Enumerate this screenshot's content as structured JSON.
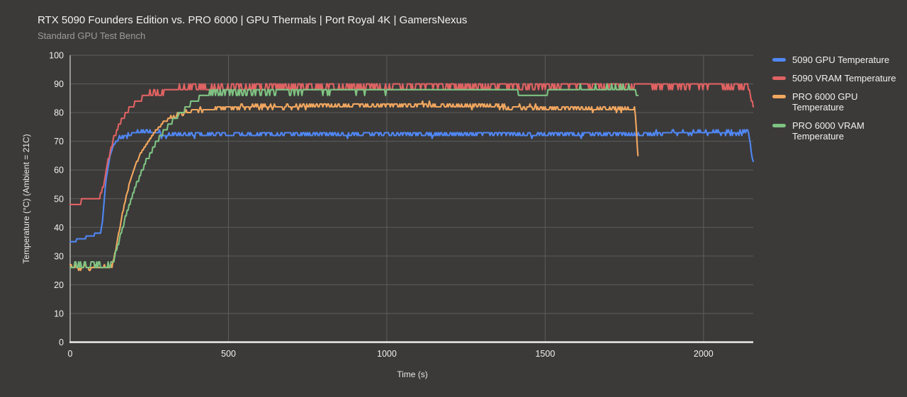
{
  "chart_data": {
    "type": "line",
    "title": "RTX 5090 Founders Edition vs. PRO 6000 | GPU Thermals | Port Royal 4K | GamersNexus",
    "subtitle": "Standard GPU Test Bench",
    "xlabel": "Time (s)",
    "ylabel": "Temperature (°C) (Ambient = 21C)",
    "xlim": [
      0,
      2157
    ],
    "ylim": [
      0,
      100
    ],
    "xticks": [
      0,
      500,
      1000,
      1500,
      2000
    ],
    "yticks": [
      0,
      10,
      20,
      30,
      40,
      50,
      60,
      70,
      80,
      90,
      100
    ],
    "grid": true,
    "legend_position": "right",
    "colors": {
      "background": "#3b3a39",
      "gridline": "#5d5d5d",
      "axis_line": "#ededec",
      "title_text": "#f2f2f1",
      "subtitle_text": "#9d9c9a",
      "tick_text": "#efefee"
    },
    "series": [
      {
        "name": "5090 GPU Temperature",
        "slug": "5090-gpu-temperature",
        "color": "#5087f5",
        "quantize": 1,
        "end": 2157,
        "noise": [
          [
            150,
            2140,
            0.95
          ]
        ],
        "keypoints": [
          [
            0,
            34.5
          ],
          [
            15,
            35
          ],
          [
            25,
            36
          ],
          [
            50,
            36.6
          ],
          [
            70,
            37.4
          ],
          [
            90,
            38
          ],
          [
            97,
            38.2
          ],
          [
            103,
            43
          ],
          [
            108,
            50
          ],
          [
            113,
            56
          ],
          [
            119,
            61
          ],
          [
            126,
            65
          ],
          [
            134,
            68
          ],
          [
            145,
            70
          ],
          [
            158,
            71.2
          ],
          [
            172,
            71.8
          ],
          [
            188,
            72.3
          ],
          [
            205,
            73.2
          ],
          [
            225,
            73.6
          ],
          [
            245,
            73.2
          ],
          [
            265,
            73.6
          ],
          [
            283,
            73
          ],
          [
            292,
            71.6
          ],
          [
            305,
            71.9
          ],
          [
            330,
            72.4
          ],
          [
            380,
            72.3
          ],
          [
            450,
            72.5
          ],
          [
            550,
            72.4
          ],
          [
            700,
            72.6
          ],
          [
            850,
            72.4
          ],
          [
            1000,
            72.6
          ],
          [
            1150,
            72.4
          ],
          [
            1300,
            72.6
          ],
          [
            1450,
            72.4
          ],
          [
            1600,
            72.3
          ],
          [
            1750,
            72.5
          ],
          [
            1850,
            72.7
          ],
          [
            1950,
            72.9
          ],
          [
            2050,
            73.1
          ],
          [
            2120,
            73.2
          ],
          [
            2142,
            73
          ],
          [
            2147,
            69.5
          ],
          [
            2151,
            66
          ],
          [
            2157,
            62.5
          ]
        ]
      },
      {
        "name": "5090 VRAM Temperature",
        "slug": "5090-vram-temperature",
        "color": "#e06262",
        "quantize": 2,
        "end": 2157,
        "noise": [
          [
            0,
            92,
            0.4
          ],
          [
            240,
            2136,
            0.95
          ]
        ],
        "keypoints": [
          [
            0,
            48.4
          ],
          [
            28,
            48.6
          ],
          [
            36,
            49.8
          ],
          [
            60,
            50.2
          ],
          [
            90,
            50.4
          ],
          [
            98,
            51.5
          ],
          [
            106,
            55
          ],
          [
            114,
            60
          ],
          [
            122,
            64.5
          ],
          [
            131,
            68.5
          ],
          [
            141,
            72
          ],
          [
            152,
            75
          ],
          [
            164,
            77.5
          ],
          [
            177,
            80
          ],
          [
            192,
            82
          ],
          [
            208,
            83.6
          ],
          [
            226,
            85
          ],
          [
            248,
            86
          ],
          [
            272,
            86.8
          ],
          [
            300,
            87.6
          ],
          [
            340,
            88.2
          ],
          [
            390,
            88.6
          ],
          [
            450,
            88.8
          ],
          [
            520,
            88.7
          ],
          [
            600,
            89
          ],
          [
            700,
            89.1
          ],
          [
            800,
            88.9
          ],
          [
            900,
            89.1
          ],
          [
            1000,
            89.2
          ],
          [
            1100,
            89
          ],
          [
            1200,
            89.3
          ],
          [
            1300,
            89.1
          ],
          [
            1400,
            89.4
          ],
          [
            1500,
            89.2
          ],
          [
            1600,
            89.5
          ],
          [
            1700,
            89.4
          ],
          [
            1800,
            89.6
          ],
          [
            1900,
            89.5
          ],
          [
            2000,
            89.6
          ],
          [
            2100,
            89.5
          ],
          [
            2138,
            89.4
          ],
          [
            2144,
            87.5
          ],
          [
            2149,
            85
          ],
          [
            2153,
            83.5
          ],
          [
            2157,
            82.6
          ]
        ]
      },
      {
        "name": "PRO 6000 GPU Temperature",
        "slug": "pro-6000-gpu-temperature",
        "color": "#f2a75f",
        "quantize": 1,
        "end": 1793,
        "noise": [
          [
            0,
            130,
            0.6
          ],
          [
            290,
            1784,
            0.85
          ]
        ],
        "keypoints": [
          [
            0,
            26
          ],
          [
            18,
            26.6
          ],
          [
            33,
            25.4
          ],
          [
            48,
            26.8
          ],
          [
            63,
            25.3
          ],
          [
            78,
            26.5
          ],
          [
            93,
            25.4
          ],
          [
            108,
            26.2
          ],
          [
            122,
            25.8
          ],
          [
            132,
            26.5
          ],
          [
            140,
            30
          ],
          [
            150,
            36
          ],
          [
            160,
            42
          ],
          [
            170,
            47.5
          ],
          [
            180,
            52
          ],
          [
            190,
            56
          ],
          [
            200,
            59.5
          ],
          [
            210,
            62.5
          ],
          [
            220,
            65
          ],
          [
            231,
            67.3
          ],
          [
            242,
            69.3
          ],
          [
            254,
            71.2
          ],
          [
            266,
            73
          ],
          [
            280,
            74.8
          ],
          [
            295,
            76.3
          ],
          [
            312,
            77.6
          ],
          [
            330,
            78.7
          ],
          [
            350,
            79.6
          ],
          [
            375,
            80.4
          ],
          [
            405,
            81
          ],
          [
            445,
            81.4
          ],
          [
            495,
            81.6
          ],
          [
            560,
            81.9
          ],
          [
            640,
            82
          ],
          [
            730,
            82.1
          ],
          [
            830,
            82.3
          ],
          [
            930,
            82.4
          ],
          [
            1030,
            82.6
          ],
          [
            1110,
            82.8
          ],
          [
            1170,
            82.7
          ],
          [
            1240,
            82.4
          ],
          [
            1320,
            82.1
          ],
          [
            1400,
            81.9
          ],
          [
            1480,
            81.7
          ],
          [
            1560,
            81.5
          ],
          [
            1650,
            81.3
          ],
          [
            1740,
            81.2
          ],
          [
            1782,
            81.1
          ],
          [
            1786,
            78
          ],
          [
            1790,
            70
          ],
          [
            1793,
            64.5
          ]
        ]
      },
      {
        "name": "PRO 6000 VRAM Temperature",
        "slug": "pro-6000-vram-temperature",
        "color": "#7fc382",
        "quantize": 2,
        "end": 1793,
        "noise": [
          [
            0,
            134,
            0.75
          ],
          [
            440,
            1390,
            0.85
          ],
          [
            1520,
            1770,
            0.6
          ]
        ],
        "keypoints": [
          [
            0,
            26.8
          ],
          [
            25,
            27.1
          ],
          [
            50,
            26.6
          ],
          [
            75,
            27.2
          ],
          [
            100,
            26.7
          ],
          [
            120,
            27
          ],
          [
            134,
            27.2
          ],
          [
            140,
            29.5
          ],
          [
            150,
            33.5
          ],
          [
            160,
            37.5
          ],
          [
            170,
            41.5
          ],
          [
            179,
            45
          ],
          [
            188,
            48
          ],
          [
            197,
            51
          ],
          [
            206,
            53.8
          ],
          [
            215,
            56.5
          ],
          [
            224,
            59
          ],
          [
            233,
            61.3
          ],
          [
            242,
            63.4
          ],
          [
            251,
            65.4
          ],
          [
            260,
            67.3
          ],
          [
            270,
            69.2
          ],
          [
            280,
            71
          ],
          [
            290,
            72.6
          ],
          [
            300,
            74.1
          ],
          [
            311,
            75.6
          ],
          [
            322,
            77
          ],
          [
            334,
            78.4
          ],
          [
            346,
            79.7
          ],
          [
            359,
            81
          ],
          [
            372,
            82.2
          ],
          [
            386,
            83.4
          ],
          [
            400,
            84.6
          ],
          [
            415,
            85.7
          ],
          [
            430,
            86.6
          ],
          [
            450,
            87.1
          ],
          [
            520,
            87.2
          ],
          [
            600,
            87.5
          ],
          [
            700,
            87.6
          ],
          [
            800,
            87.6
          ],
          [
            900,
            87.7
          ],
          [
            1000,
            87.7
          ],
          [
            1100,
            87.9
          ],
          [
            1200,
            88.1
          ],
          [
            1300,
            88.2
          ],
          [
            1360,
            88.2
          ],
          [
            1405,
            87.4
          ],
          [
            1425,
            86.6
          ],
          [
            1505,
            86.6
          ],
          [
            1518,
            88.3
          ],
          [
            1600,
            88.5
          ],
          [
            1700,
            88.6
          ],
          [
            1772,
            88.5
          ],
          [
            1780,
            88.2
          ],
          [
            1786,
            86.8
          ],
          [
            1793,
            85.4
          ]
        ]
      }
    ]
  }
}
